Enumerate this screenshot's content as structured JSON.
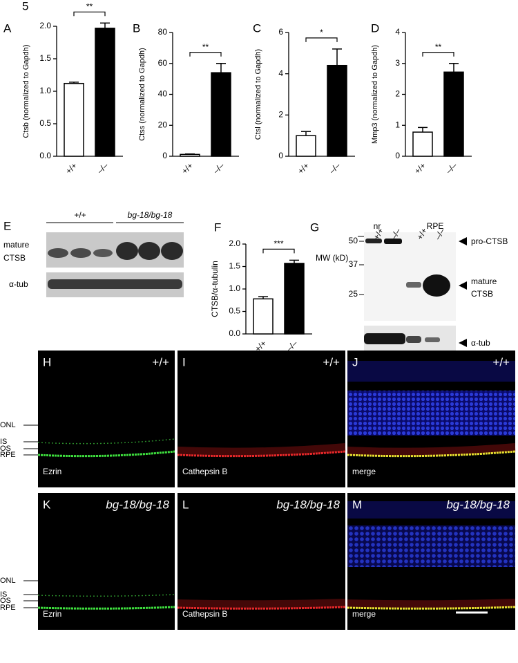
{
  "figure_number": "5",
  "chart_data": [
    {
      "type": "bar",
      "panel": "A",
      "ylabel": "Ctsb (normalized to Gapdh)",
      "categories": [
        "+/+",
        "–/–"
      ],
      "values": [
        1.12,
        1.97
      ],
      "errors": [
        0.02,
        0.08
      ],
      "colors": [
        "#ffffff",
        "#000000"
      ],
      "ylim": [
        0,
        2
      ],
      "yticks": [
        {
          "value": 0,
          "label": "0.0"
        },
        {
          "value": 0.5,
          "label": "0.5"
        },
        {
          "value": 1,
          "label": "1.0"
        },
        {
          "value": 1.5,
          "label": "1.5"
        },
        {
          "value": 2,
          "label": "2.0"
        }
      ],
      "significance": "**"
    },
    {
      "type": "bar",
      "panel": "B",
      "ylabel": "Ctss (normalized to Gapdh)",
      "categories": [
        "+/+",
        "–/–"
      ],
      "values": [
        1.2,
        54
      ],
      "errors": [
        0.3,
        6
      ],
      "colors": [
        "#ffffff",
        "#000000"
      ],
      "ylim": [
        0,
        80
      ],
      "yticks": [
        0,
        20,
        40,
        60,
        80
      ],
      "significance": "**"
    },
    {
      "type": "bar",
      "panel": "C",
      "ylabel": "Ctsl (normalized to Gapdh)",
      "categories": [
        "+/+",
        "–/–"
      ],
      "values": [
        1.0,
        4.4
      ],
      "errors": [
        0.2,
        0.8
      ],
      "colors": [
        "#ffffff",
        "#000000"
      ],
      "ylim": [
        0,
        6
      ],
      "yticks": [
        0,
        2,
        4,
        6
      ],
      "significance": "*"
    },
    {
      "type": "bar",
      "panel": "D",
      "ylabel": "Mmp3 (normalized to Gapdh)",
      "categories": [
        "+/+",
        "–/–"
      ],
      "values": [
        0.78,
        2.72
      ],
      "errors": [
        0.15,
        0.28
      ],
      "colors": [
        "#ffffff",
        "#000000"
      ],
      "ylim": [
        0,
        4
      ],
      "yticks": [
        0,
        1,
        2,
        3,
        4
      ],
      "significance": "**"
    },
    {
      "type": "bar",
      "panel": "F",
      "ylabel": "CTSB/α-tubulin",
      "categories": [
        "+/+",
        "–/–"
      ],
      "values": [
        0.78,
        1.57
      ],
      "errors": [
        0.05,
        0.07
      ],
      "colors": [
        "#ffffff",
        "#000000"
      ],
      "ylim": [
        0,
        2
      ],
      "yticks": [
        {
          "value": 0,
          "label": "0.0"
        },
        {
          "value": 0.5,
          "label": "0.5"
        },
        {
          "value": 1,
          "label": "1.0"
        },
        {
          "value": 1.5,
          "label": "1.5"
        },
        {
          "value": 2,
          "label": "2.0"
        }
      ],
      "significance": "***"
    }
  ],
  "blot_e": {
    "panel": "E",
    "groups": [
      "+/+",
      "bg-18/bg-18"
    ],
    "rows": [
      [
        "mature",
        "CTSB"
      ],
      [
        "α-tub"
      ]
    ]
  },
  "blot_g": {
    "panel": "G",
    "groups": [
      "nr",
      "RPE"
    ],
    "mw_title": "MW (kD)",
    "lanes": [
      "+/+",
      "–/–",
      "+/+",
      "–/–"
    ],
    "mw": [
      50,
      37,
      25
    ],
    "bands": [
      [
        "pro-CTSB"
      ],
      [
        "mature",
        "CTSB"
      ],
      [
        "α-tub"
      ]
    ]
  },
  "micrographs": {
    "layers": [
      "ONL",
      "IS",
      "OS",
      "RPE"
    ],
    "scale_bar": true,
    "rows": [
      {
        "genotype": "+/+",
        "panels": [
          {
            "label": "H",
            "stain": "Ezrin"
          },
          {
            "label": "I",
            "stain": "Cathepsin B"
          },
          {
            "label": "J",
            "stain": "merge"
          }
        ]
      },
      {
        "genotype": "bg-18/bg-18",
        "panels": [
          {
            "label": "K",
            "stain": "Ezrin"
          },
          {
            "label": "L",
            "stain": "Cathepsin B"
          },
          {
            "label": "M",
            "stain": "merge"
          }
        ]
      }
    ]
  }
}
